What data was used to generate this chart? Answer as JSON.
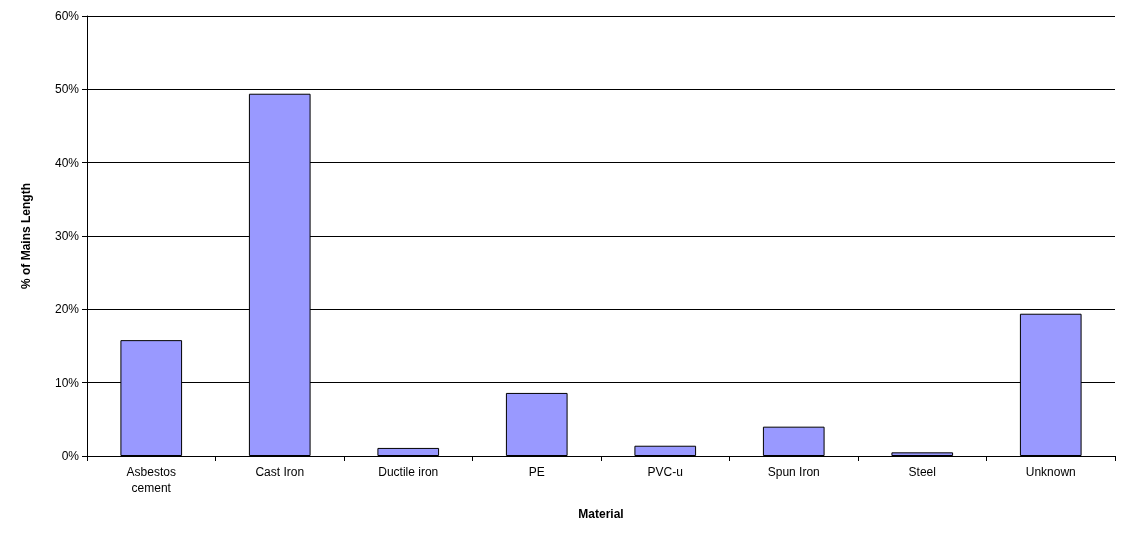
{
  "chart_data": {
    "type": "bar",
    "xlabel": "Material",
    "ylabel": "% of Mains Length",
    "categories": [
      "Asbestos\ncement",
      "Cast Iron",
      "Ductile iron",
      "PE",
      "PVC-u",
      "Spun Iron",
      "Steel",
      "Unknown"
    ],
    "values": [
      15.8,
      49.4,
      1.1,
      8.6,
      1.4,
      4.0,
      0.5,
      19.4
    ],
    "color": "#9999ff",
    "ylim": [
      0,
      60
    ],
    "yticks": [
      {
        "value": 0,
        "label": "0%"
      },
      {
        "value": 10,
        "label": "10%"
      },
      {
        "value": 20,
        "label": "20%"
      },
      {
        "value": 30,
        "label": "30%"
      },
      {
        "value": 40,
        "label": "40%"
      },
      {
        "value": 50,
        "label": "50%"
      },
      {
        "value": 60,
        "label": "60%"
      }
    ],
    "grid": "y"
  }
}
